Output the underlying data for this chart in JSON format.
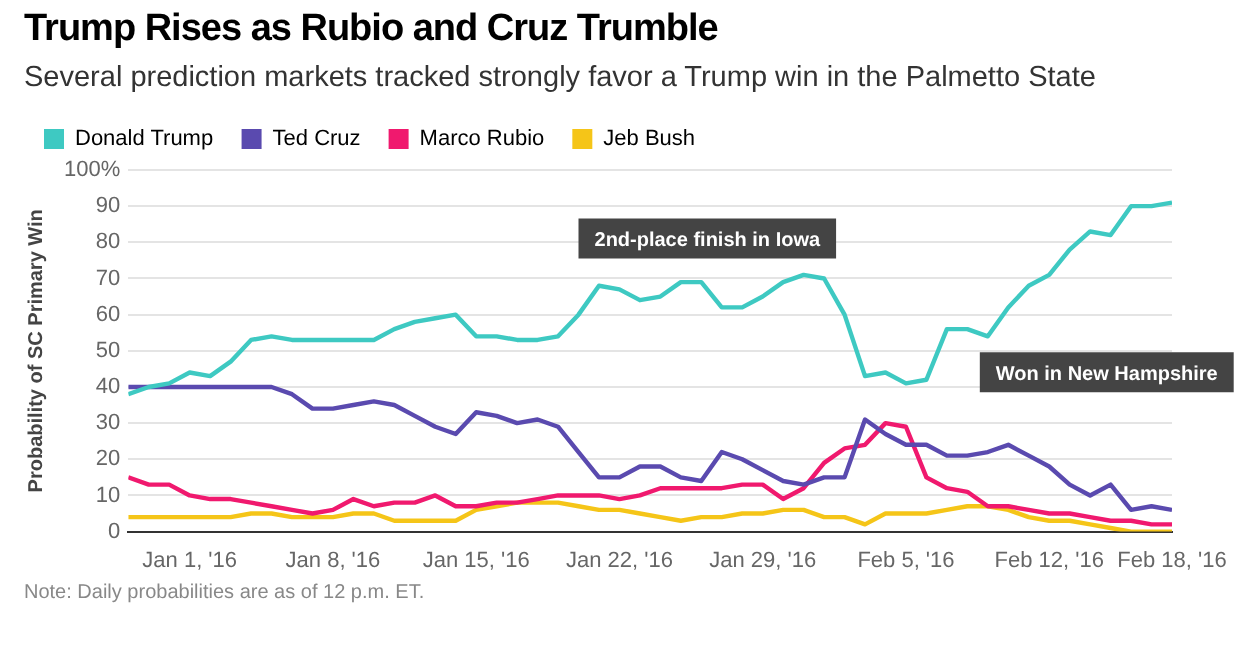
{
  "chart_data": {
    "type": "line",
    "title": "Trump Rises as Rubio and Cruz Trumble",
    "subtitle": "Several prediction markets tracked strongly favor a Trump win in the Palmetto State",
    "ylabel": "Probability of SC Primary Win",
    "x": [
      "2015-12-29",
      "2015-12-30",
      "2015-12-31",
      "2016-01-01",
      "2016-01-02",
      "2016-01-03",
      "2016-01-04",
      "2016-01-05",
      "2016-01-06",
      "2016-01-07",
      "2016-01-08",
      "2016-01-09",
      "2016-01-10",
      "2016-01-11",
      "2016-01-12",
      "2016-01-13",
      "2016-01-14",
      "2016-01-15",
      "2016-01-16",
      "2016-01-17",
      "2016-01-18",
      "2016-01-19",
      "2016-01-20",
      "2016-01-21",
      "2016-01-22",
      "2016-01-23",
      "2016-01-24",
      "2016-01-25",
      "2016-01-26",
      "2016-01-27",
      "2016-01-28",
      "2016-01-29",
      "2016-01-30",
      "2016-01-31",
      "2016-02-01",
      "2016-02-02",
      "2016-02-03",
      "2016-02-04",
      "2016-02-05",
      "2016-02-06",
      "2016-02-07",
      "2016-02-08",
      "2016-02-09",
      "2016-02-10",
      "2016-02-11",
      "2016-02-12",
      "2016-02-13",
      "2016-02-14",
      "2016-02-15",
      "2016-02-16",
      "2016-02-17",
      "2016-02-18"
    ],
    "series": [
      {
        "name": "Donald Trump",
        "color": "#3ec9c2",
        "values": [
          38,
          40,
          41,
          44,
          43,
          47,
          53,
          54,
          53,
          53,
          53,
          53,
          53,
          56,
          58,
          59,
          60,
          54,
          54,
          53,
          53,
          54,
          60,
          68,
          67,
          64,
          65,
          69,
          69,
          62,
          62,
          65,
          69,
          71,
          70,
          60,
          43,
          44,
          41,
          42,
          56,
          56,
          54,
          62,
          68,
          71,
          78,
          83,
          82,
          90,
          90,
          91
        ]
      },
      {
        "name": "Ted Cruz",
        "color": "#5a4aaf",
        "values": [
          40,
          40,
          40,
          40,
          40,
          40,
          40,
          40,
          38,
          34,
          34,
          35,
          36,
          35,
          32,
          29,
          27,
          33,
          32,
          30,
          31,
          29,
          22,
          15,
          15,
          18,
          18,
          15,
          14,
          22,
          20,
          17,
          14,
          13,
          15,
          15,
          31,
          27,
          24,
          24,
          21,
          21,
          22,
          24,
          21,
          18,
          13,
          10,
          13,
          6,
          7,
          6
        ]
      },
      {
        "name": "Marco Rubio",
        "color": "#f0196e",
        "values": [
          15,
          13,
          13,
          10,
          9,
          9,
          8,
          7,
          6,
          5,
          6,
          9,
          7,
          8,
          8,
          10,
          7,
          7,
          8,
          8,
          9,
          10,
          10,
          10,
          9,
          10,
          12,
          12,
          12,
          12,
          13,
          13,
          9,
          12,
          19,
          23,
          24,
          30,
          29,
          15,
          12,
          11,
          7,
          7,
          6,
          5,
          5,
          4,
          3,
          3,
          2,
          2
        ]
      },
      {
        "name": "Jeb Bush",
        "color": "#f5c518",
        "values": [
          4,
          4,
          4,
          4,
          4,
          4,
          5,
          5,
          4,
          4,
          4,
          5,
          5,
          3,
          3,
          3,
          3,
          6,
          7,
          8,
          8,
          8,
          7,
          6,
          6,
          5,
          4,
          3,
          4,
          4,
          5,
          5,
          6,
          6,
          4,
          4,
          2,
          5,
          5,
          5,
          6,
          7,
          7,
          6,
          4,
          3,
          3,
          2,
          1,
          0,
          0,
          0
        ]
      }
    ],
    "xlim": [
      "2015-12-29",
      "2016-02-18"
    ],
    "xticks": [
      {
        "value": "2016-01-01",
        "label": "Jan 1, '16"
      },
      {
        "value": "2016-01-08",
        "label": "Jan 8, '16"
      },
      {
        "value": "2016-01-15",
        "label": "Jan 15, '16"
      },
      {
        "value": "2016-01-22",
        "label": "Jan 22, '16"
      },
      {
        "value": "2016-01-29",
        "label": "Jan 29, '16"
      },
      {
        "value": "2016-02-05",
        "label": "Feb 5, '16"
      },
      {
        "value": "2016-02-12",
        "label": "Feb 12, '16"
      },
      {
        "value": "2016-02-18",
        "label": "Feb 18, '16"
      }
    ],
    "ylim": [
      0,
      100
    ],
    "yticks": [
      0,
      10,
      20,
      30,
      40,
      50,
      60,
      70,
      80,
      90,
      {
        "value": 100,
        "label": "100%"
      }
    ],
    "grid": "y",
    "legend": "top left",
    "marker": "none",
    "line_style": "solid",
    "annotations": [
      {
        "text": "2nd-place finish in Iowa",
        "x": "2016-02-01",
        "y": 70
      },
      {
        "text": "Won in New Hampshire",
        "x": "2016-02-09",
        "y": 54
      },
      "Note: Daily probabilities are as of 12 p.m. ET."
    ]
  }
}
